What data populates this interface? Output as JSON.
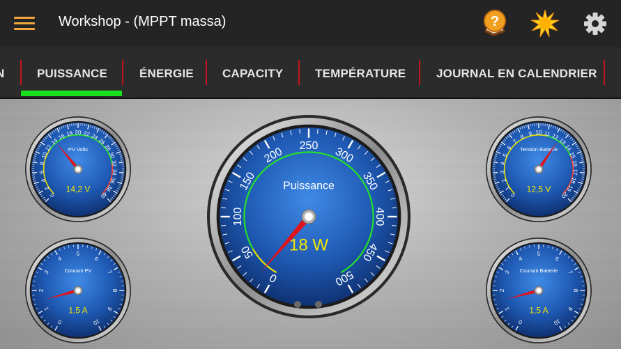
{
  "app_bar": {
    "title": "Workshop - (MPPT massa)",
    "menu_icon": "hamburger-menu-icon",
    "actions": [
      {
        "icon": "help-book-icon"
      },
      {
        "icon": "brightness-sun-icon"
      },
      {
        "icon": "gear-icon"
      }
    ]
  },
  "tabs": [
    {
      "label": "N",
      "active": false
    },
    {
      "label": "PUISSANCE",
      "active": true
    },
    {
      "label": "ÉNERGIE",
      "active": false
    },
    {
      "label": "CAPACITY",
      "active": false
    },
    {
      "label": "TEMPÉRATURE",
      "active": false
    },
    {
      "label": "JOURNAL EN CALENDRIER",
      "active": false
    }
  ],
  "colors": {
    "tab_indicator": "#19e01c",
    "tab_separator": "#c2151b",
    "accent_orange": "#f0a63a",
    "gauge_face": "#1f5ab4",
    "value_text": "#f5e600"
  },
  "gauges": {
    "pv_volts": {
      "label": "PV Volts",
      "value_text": "14,2 V",
      "value": 14.2,
      "min": 0,
      "max": 40,
      "ticks": [
        "0",
        "2",
        "4",
        "6",
        "8",
        "10",
        "12",
        "14",
        "16",
        "18",
        "20",
        "22",
        "24",
        "26",
        "28",
        "30",
        "32",
        "34",
        "36",
        "38",
        "40"
      ]
    },
    "courant_pv": {
      "label": "Courant PV",
      "value_text": "1,5 A",
      "value": 1.5,
      "min": 0,
      "max": 10,
      "ticks": [
        "0",
        "1",
        "2",
        "3",
        "4",
        "5",
        "6",
        "7",
        "8",
        "9",
        "10"
      ]
    },
    "puissance": {
      "label": "Puissance",
      "value_text": "18 W",
      "value": 18,
      "min": 0,
      "max": 500,
      "ticks": [
        "0",
        "50",
        "100",
        "150",
        "200",
        "250",
        "300",
        "350",
        "400",
        "450",
        "500"
      ]
    },
    "tension_batterie": {
      "label": "Tension Batterie",
      "value_text": "12,5 V",
      "value": 12.5,
      "min": 0,
      "max": 20,
      "ticks": [
        "0",
        "1",
        "2",
        "3",
        "4",
        "5",
        "6",
        "7",
        "8",
        "9",
        "10",
        "11",
        "12",
        "13",
        "14",
        "15",
        "16",
        "17",
        "18",
        "19",
        "20"
      ]
    },
    "courant_batterie": {
      "label": "Courant Batterie",
      "value_text": "1,5 A",
      "value": 1.5,
      "min": 0,
      "max": 10,
      "ticks": [
        "0",
        "1",
        "2",
        "3",
        "4",
        "5",
        "6",
        "7",
        "8",
        "9",
        "10"
      ]
    }
  },
  "pager": {
    "count": 2,
    "active": 0
  }
}
